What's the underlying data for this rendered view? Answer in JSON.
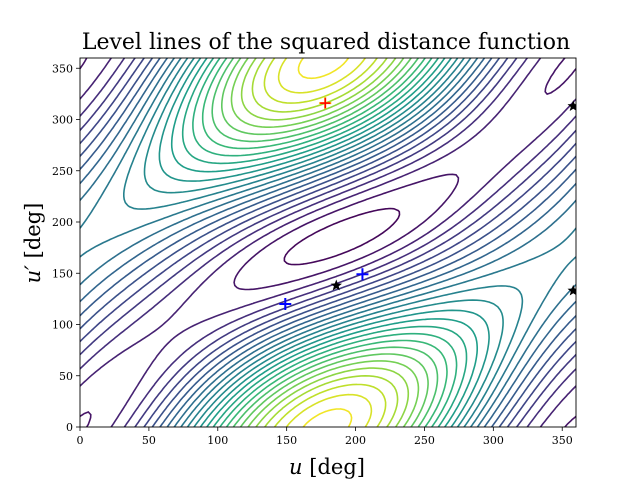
{
  "chart_data": {
    "type": "contour",
    "title": "Level lines of the squared distance function",
    "xlabel_var": "u",
    "xlabel_unit": "[deg]",
    "ylabel_var": "u′",
    "ylabel_unit": "[deg]",
    "xlim": [
      0,
      360
    ],
    "ylim": [
      0,
      360
    ],
    "xticks": [
      0,
      50,
      100,
      150,
      200,
      250,
      300,
      350
    ],
    "yticks": [
      0,
      50,
      100,
      150,
      200,
      250,
      300,
      350
    ],
    "colormap": "viridis",
    "num_levels": 26,
    "maximum_marker": {
      "type": "plus",
      "color": "#ff0000",
      "x": 178,
      "y": 316
    },
    "blue_markers": [
      {
        "x": 149,
        "y": 120
      },
      {
        "x": 205,
        "y": 149
      }
    ],
    "star_markers": [
      {
        "x": 186,
        "y": 138
      },
      {
        "x": 358,
        "y": 133
      },
      {
        "x": 358,
        "y": 313
      }
    ],
    "marker_colors": {
      "plus_blue": "#0000ff",
      "plus_red": "#ff0000",
      "plus_orange": "#ffa500",
      "star": "#000000"
    }
  }
}
